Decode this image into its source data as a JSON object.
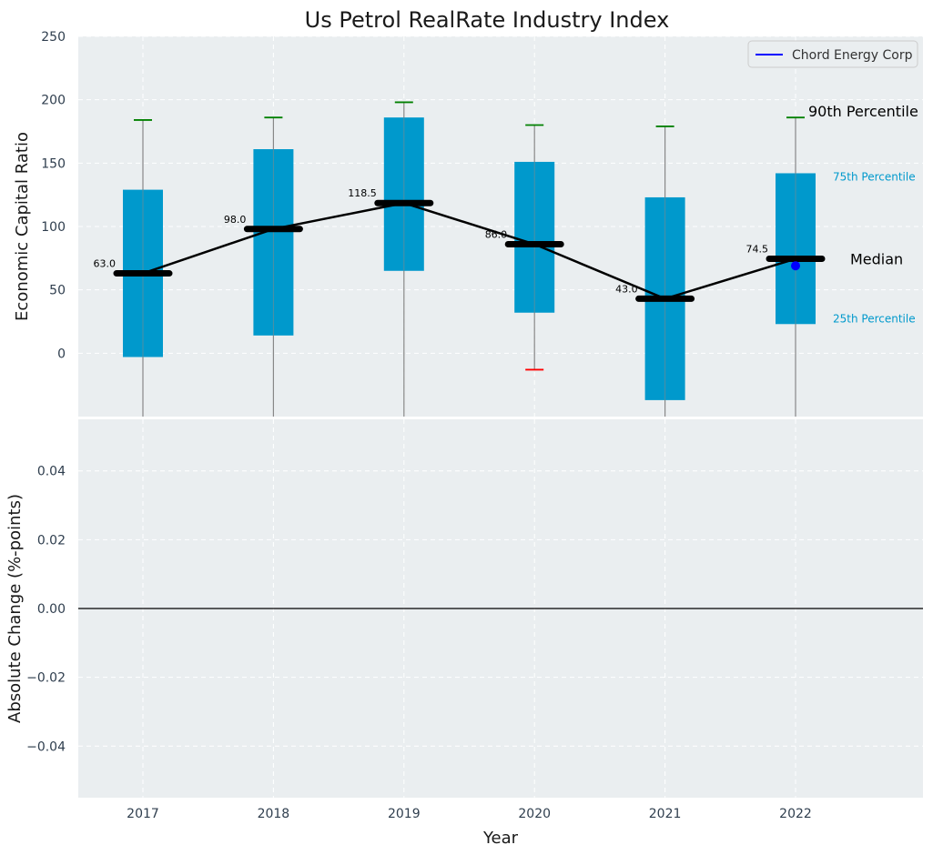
{
  "chart_data": [
    {
      "type": "box",
      "title": "Us Petrol RealRate Industry Index",
      "xlabel": "",
      "ylabel": "Economic Capital Ratio",
      "ylim": [
        -50,
        250
      ],
      "yticks": [
        0,
        50,
        100,
        150,
        200,
        250
      ],
      "categories": [
        "2017",
        "2018",
        "2019",
        "2020",
        "2021",
        "2022"
      ],
      "boxes": [
        {
          "year": "2017",
          "p10": -50,
          "p25": -3,
          "median": 63.0,
          "p75": 129,
          "p90": 184,
          "p90_color": "#008000",
          "p10_color": null
        },
        {
          "year": "2018",
          "p10": -50,
          "p25": 14,
          "median": 98.0,
          "p75": 161,
          "p90": 186,
          "p90_color": "#008000",
          "p10_color": null
        },
        {
          "year": "2019",
          "p10": -50,
          "p25": 65,
          "median": 118.5,
          "p75": 186,
          "p90": 198,
          "p90_color": "#008000",
          "p10_color": null
        },
        {
          "year": "2020",
          "p10": -13,
          "p25": 32,
          "median": 86.0,
          "p75": 151,
          "p90": 180,
          "p90_color": "#008000",
          "p10_color": "#ff0000"
        },
        {
          "year": "2021",
          "p10": -50,
          "p25": -37,
          "median": 43.0,
          "p75": 123,
          "p90": 179,
          "p90_color": "#008000",
          "p10_color": null
        },
        {
          "year": "2022",
          "p10": -50,
          "p25": 23,
          "median": 74.5,
          "p75": 142,
          "p90": 186,
          "p90_color": "#008000",
          "p10_color": null
        }
      ],
      "median_labels": [
        "63.0",
        "98.0",
        "118.5",
        "86.0",
        "43.0",
        "74.5"
      ],
      "company_series": {
        "name": "Chord Energy Corp",
        "color": "#0000ff",
        "points": [
          {
            "year": "2022",
            "value": 69
          }
        ]
      },
      "legend": {
        "position": "top-right",
        "entries": [
          "Chord Energy Corp"
        ]
      },
      "annotations": {
        "p90": "90th Percentile",
        "p75": "75th Percentile",
        "median": "Median",
        "p25": "25th Percentile"
      },
      "colors": {
        "box": "#0099cc",
        "median": "#000000",
        "whisker": "#888888",
        "background": "#eaeef0",
        "grid": "#ffffff",
        "annotation_box": "#0099cc"
      }
    },
    {
      "type": "line",
      "xlabel": "Year",
      "ylabel": "Absolute Change (%-points)",
      "ylim": [
        -0.055,
        0.055
      ],
      "yticks": [
        -0.04,
        -0.02,
        0.0,
        0.02,
        0.04
      ],
      "ytick_labels": [
        "−0.04",
        "−0.02",
        "0.00",
        "0.02",
        "0.04"
      ],
      "categories": [
        "2017",
        "2018",
        "2019",
        "2020",
        "2021",
        "2022"
      ],
      "zero_line": 0,
      "series": []
    }
  ]
}
